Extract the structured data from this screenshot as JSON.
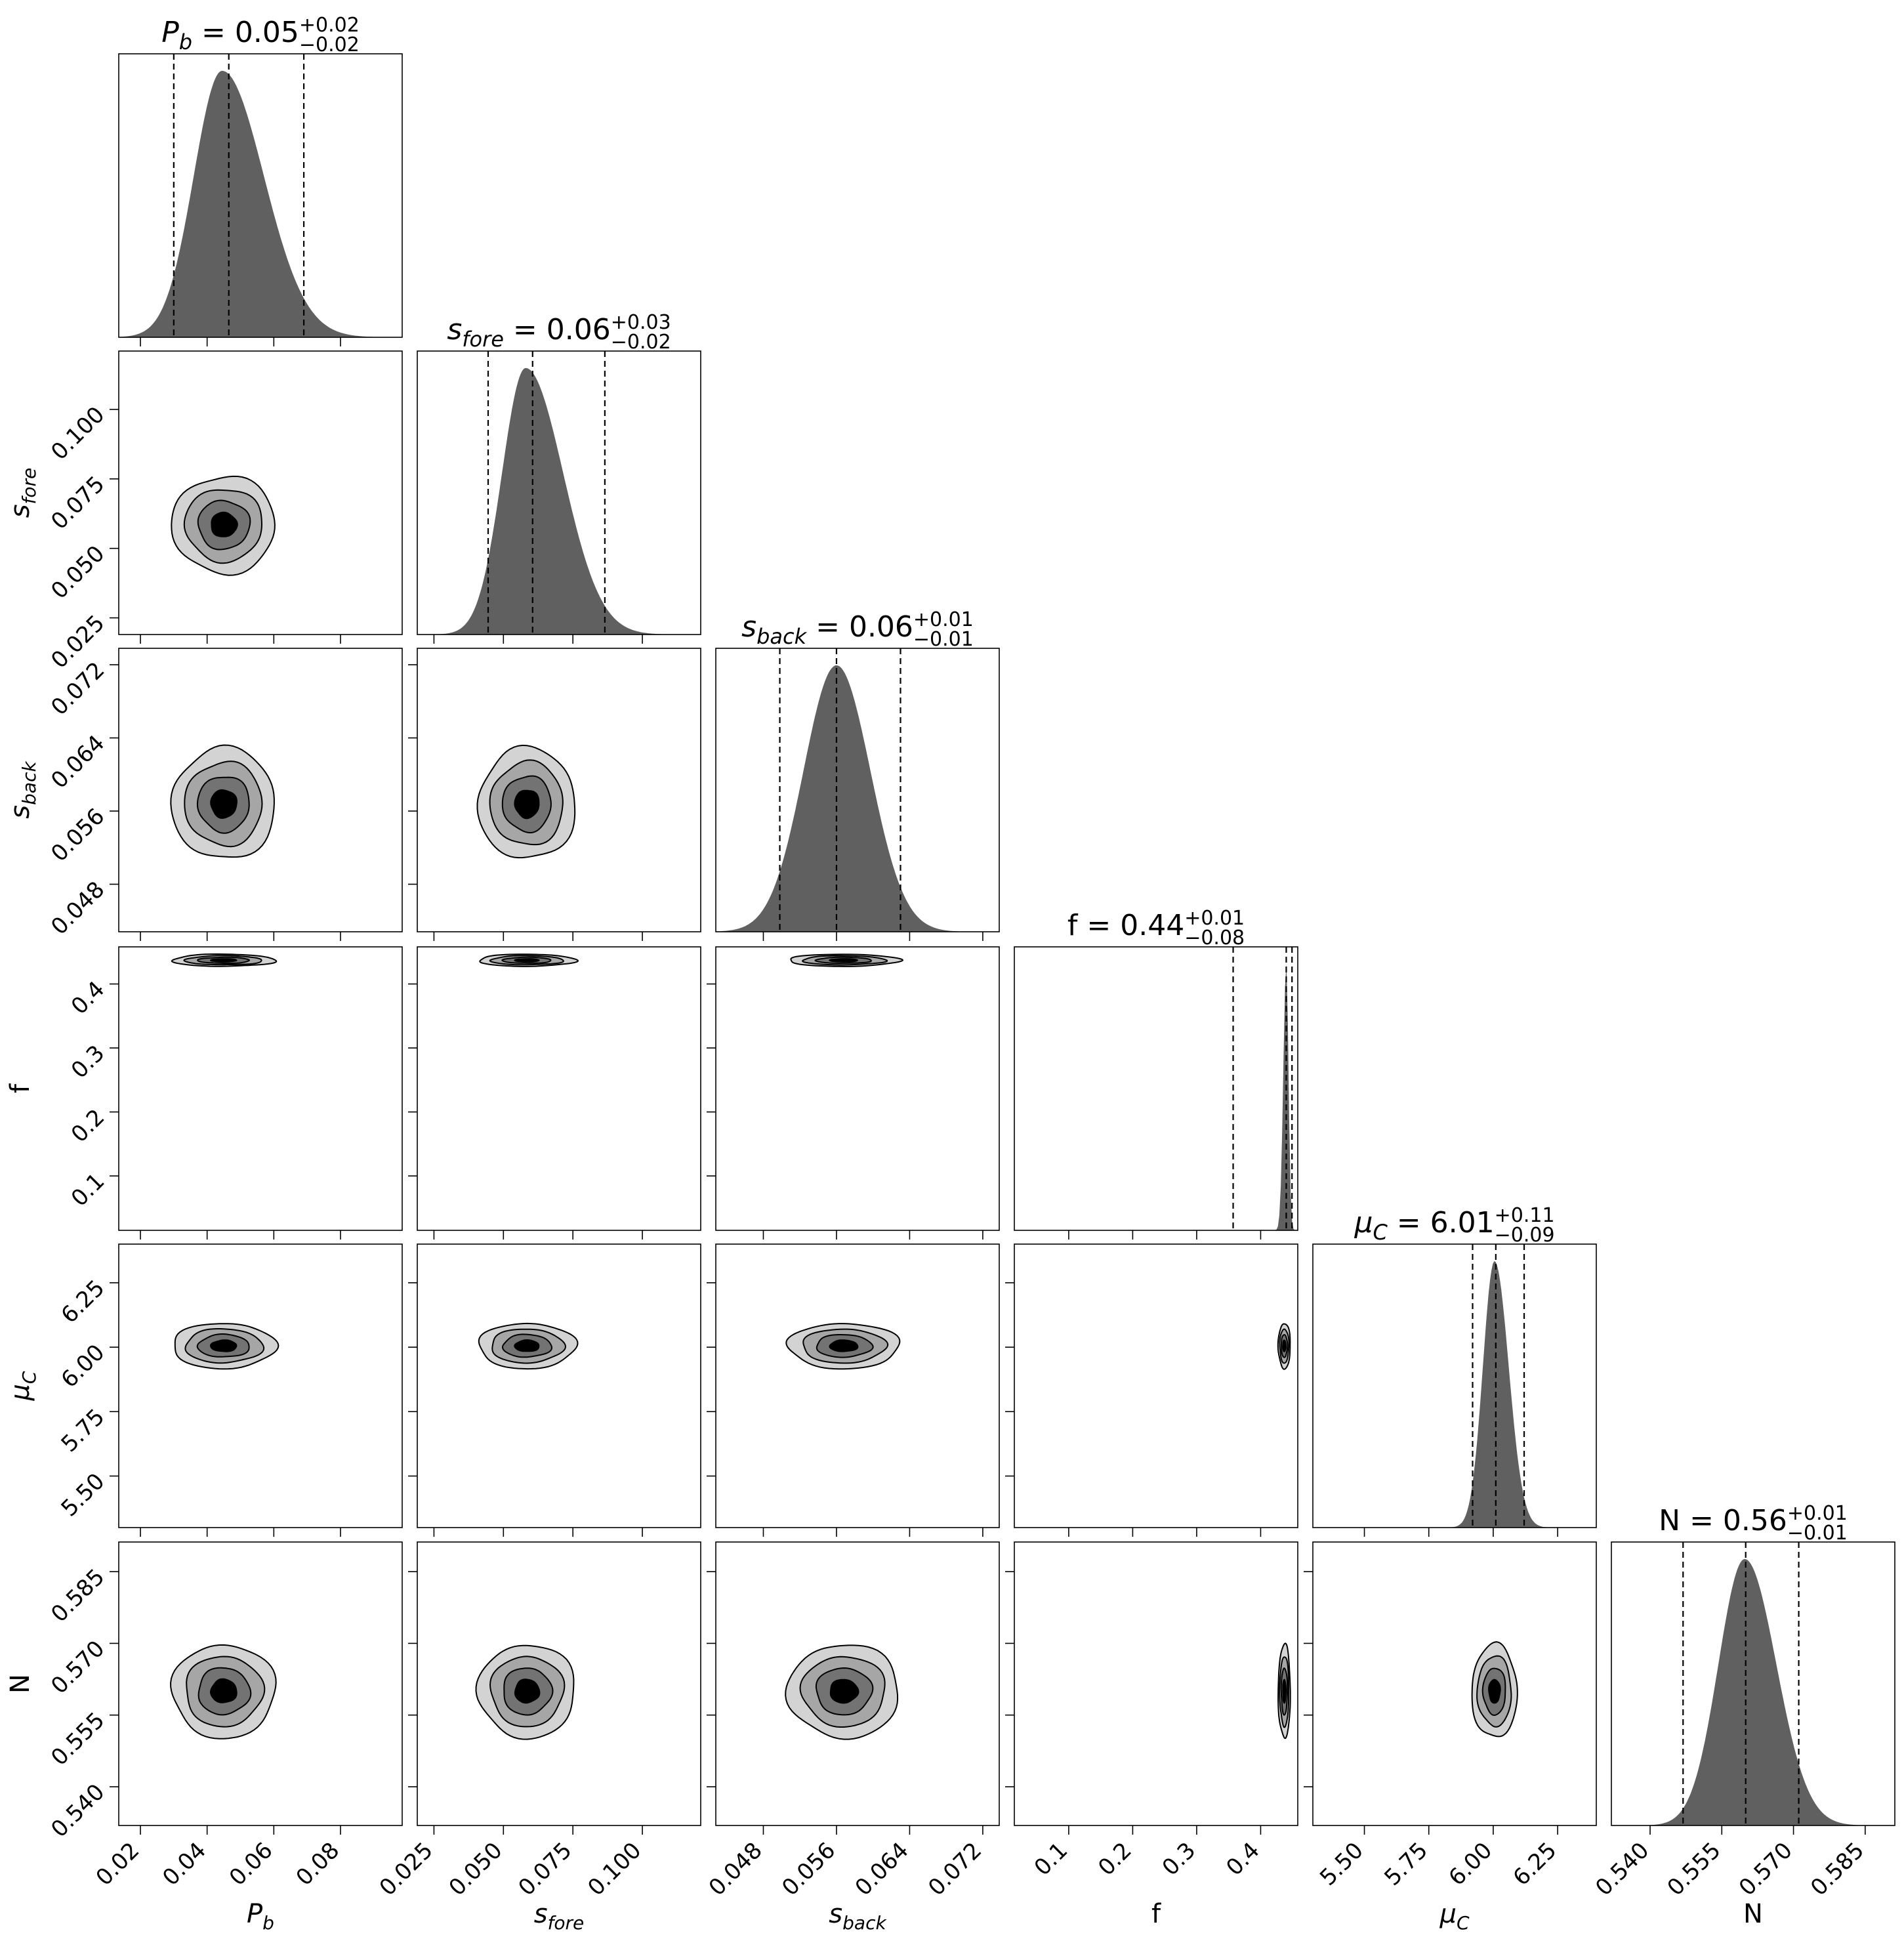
{
  "chart_data": {
    "type": "corner",
    "parameters": [
      {
        "id": "pb",
        "label_base": "P",
        "label_sub": "b",
        "italic": true,
        "median": 0.05,
        "plus": "+0.02",
        "minus": "−0.02",
        "median_text": "0.05",
        "range": [
          0.0135,
          0.0985
        ],
        "ticks": [
          0.02,
          0.04,
          0.06,
          0.08
        ],
        "tick_labels": [
          "0.02",
          "0.04",
          "0.06",
          "0.08"
        ],
        "quantiles": [
          0.03,
          0.0465,
          0.069
        ],
        "hist_peak": 0.0445,
        "hist_sigma_left": 0.0085,
        "hist_sigma_right": 0.0125,
        "contour_center": 0.045,
        "contour_sigma": 0.0155
      },
      {
        "id": "sfore",
        "label_base": "s",
        "label_sub": "fore",
        "italic": true,
        "median": 0.06,
        "plus": "+0.03",
        "minus": "−0.02",
        "median_text": "0.06",
        "range": [
          0.019,
          0.121
        ],
        "ticks": [
          0.025,
          0.05,
          0.075,
          0.1
        ],
        "tick_labels": [
          "0.025",
          "0.050",
          "0.075",
          "0.100"
        ],
        "quantiles": [
          0.0445,
          0.0605,
          0.0865
        ],
        "hist_peak": 0.058,
        "hist_sigma_left": 0.0085,
        "hist_sigma_right": 0.0135,
        "contour_center": 0.0585,
        "contour_sigma": 0.0175
      },
      {
        "id": "sback",
        "label_base": "s",
        "label_sub": "back",
        "italic": true,
        "median": 0.06,
        "plus": "+0.01",
        "minus": "−0.01",
        "median_text": "0.06",
        "range": [
          0.0428,
          0.0738
        ],
        "ticks": [
          0.048,
          0.056,
          0.064,
          0.072
        ],
        "tick_labels": [
          "0.048",
          "0.056",
          "0.064",
          "0.072"
        ],
        "quantiles": [
          0.0498,
          0.056,
          0.063
        ],
        "hist_peak": 0.056,
        "hist_sigma_left": 0.0036,
        "hist_sigma_right": 0.0037,
        "contour_center": 0.0568,
        "contour_sigma": 0.0061
      },
      {
        "id": "f",
        "label_base": "f",
        "label_sub": "",
        "italic": false,
        "median": 0.44,
        "plus": "+0.01",
        "minus": "−0.08",
        "median_text": "0.44",
        "range": [
          0.015,
          0.458
        ],
        "ticks": [
          0.1,
          0.2,
          0.3,
          0.4
        ],
        "tick_labels": [
          "0.1",
          "0.2",
          "0.3",
          "0.4"
        ],
        "quantiles": [
          0.357,
          0.44,
          0.449
        ],
        "hist_peak": 0.44,
        "hist_sigma_left": 0.0045,
        "hist_sigma_right": 0.0035,
        "contour_center": 0.437,
        "contour_sigma": 0.0095
      },
      {
        "id": "muc",
        "label_base": "μ",
        "label_sub": "C",
        "italic": true,
        "median": 6.01,
        "plus": "+0.11",
        "minus": "−0.09",
        "median_text": "6.01",
        "range": [
          5.3,
          6.4
        ],
        "ticks": [
          5.5,
          5.75,
          6.0,
          6.25
        ],
        "tick_labels": [
          "5.50",
          "5.75",
          "6.00",
          "6.25"
        ],
        "quantiles": [
          5.92,
          6.01,
          6.12
        ],
        "hist_peak": 6.005,
        "hist_sigma_left": 0.045,
        "hist_sigma_right": 0.055,
        "contour_center": 6.005,
        "contour_sigma": 0.088
      },
      {
        "id": "n",
        "label_base": "N",
        "label_sub": "",
        "italic": false,
        "median": 0.56,
        "plus": "+0.01",
        "minus": "−0.01",
        "median_text": "0.56",
        "range": [
          0.5319,
          0.5912
        ],
        "ticks": [
          0.54,
          0.555,
          0.57,
          0.585
        ],
        "tick_labels": [
          "0.540",
          "0.555",
          "0.570",
          "0.585"
        ],
        "quantiles": [
          0.5469,
          0.56,
          0.5711
        ],
        "hist_peak": 0.5598,
        "hist_sigma_left": 0.0055,
        "hist_sigma_right": 0.0066,
        "contour_center": 0.56,
        "contour_sigma": 0.0098
      }
    ],
    "contour_levels_sigma": [
      0.5,
      1.0,
      1.5,
      2.0
    ],
    "contour_fill_colors": [
      "#000000",
      "#737373",
      "#a6a6a6",
      "#d3d3d3"
    ],
    "hist_color": "#606060",
    "quantile_line_style": "dashed"
  }
}
